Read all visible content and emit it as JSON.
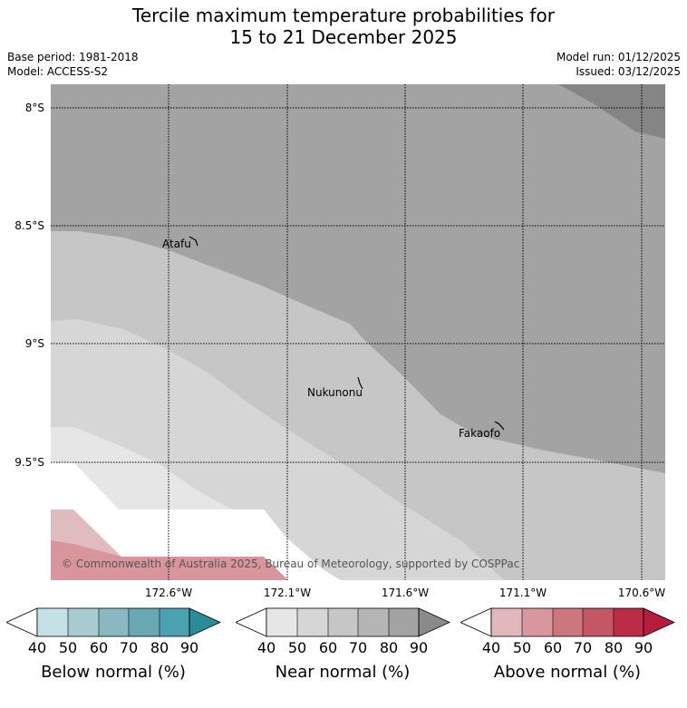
{
  "title_line1": "Tercile maximum temperature probabilities for",
  "title_line2": "15 to 21 December 2025",
  "base_period": "Base period: 1981-2018",
  "model": "Model: ACCESS-S2",
  "model_run": "Model run: 01/12/2025",
  "issued": "Issued: 03/12/2025",
  "latitude_labels": [
    "8°S",
    "8.5°S",
    "9°S",
    "9.5°S"
  ],
  "longitude_labels": [
    "172.6°W",
    "172.1°W",
    "171.6°W",
    "171.1°W",
    "170.6°W"
  ],
  "places": [
    {
      "name": "Atafu"
    },
    {
      "name": "Nukunonu"
    },
    {
      "name": "Fakaofo"
    }
  ],
  "copyright": "© Commonwealth of Australia 2025, Bureau of Meteorology, supported by COSPPac",
  "colorbars": [
    {
      "label": "Below normal (%)",
      "ticks": [
        "40",
        "50",
        "60",
        "70",
        "80",
        "90"
      ],
      "colors": [
        "#c6e1e6",
        "#a8cbd1",
        "#8ab8c2",
        "#6aa8b4",
        "#4aa1b0",
        "#2a8c98"
      ]
    },
    {
      "label": "Near normal (%)",
      "ticks": [
        "40",
        "50",
        "60",
        "70",
        "80",
        "90"
      ],
      "colors": [
        "#e6e6e6",
        "#d6d6d6",
        "#c6c6c6",
        "#b5b5b5",
        "#a3a3a3",
        "#8a8a8a"
      ]
    },
    {
      "label": "Above normal (%)",
      "ticks": [
        "40",
        "50",
        "60",
        "70",
        "80",
        "90"
      ],
      "colors": [
        "#e3b8bd",
        "#d8979e",
        "#cd767e",
        "#c45766",
        "#bc2c46",
        "#b81c3c"
      ]
    }
  ],
  "colors": {
    "near_80_90": "#a3a3a3",
    "near_90_plus": "#858585",
    "near_70_80": "#c6c6c6",
    "near_60_70": "#d6d6d6",
    "near_50_60": "#e6e6e6",
    "above_40_50": "#e0bcc0",
    "above_50_60": "#d8969c"
  }
}
